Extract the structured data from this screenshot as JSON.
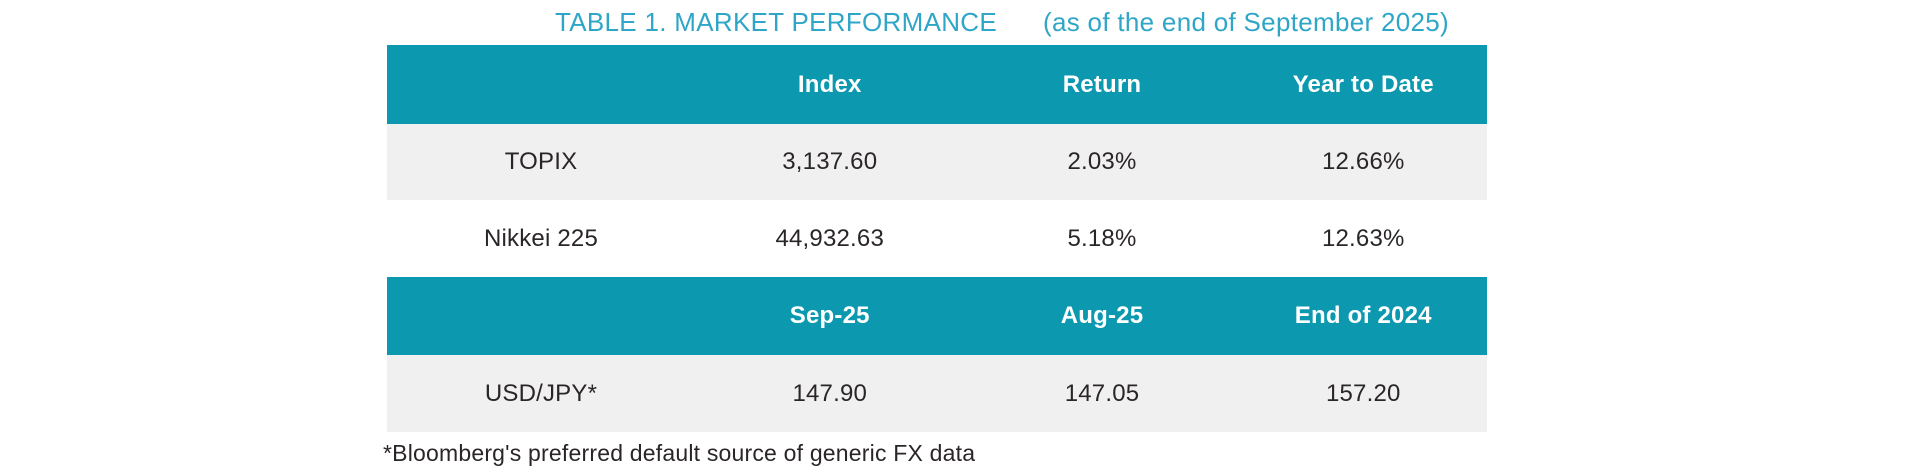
{
  "title": {
    "main": "TABLE 1. MARKET PERFORMANCE",
    "suffix": "(as of the end of September 2025)"
  },
  "colors": {
    "header_bg": "#0c99af",
    "header_text": "#ffffff",
    "title_text": "#2fa6c8",
    "row_alt_bg": "#f0f0f0",
    "body_text": "#2a2627"
  },
  "tables": [
    {
      "headers": [
        "",
        "Index",
        "Return",
        "Year to Date"
      ],
      "rows": [
        [
          "TOPIX",
          "3,137.60",
          "2.03%",
          "12.66%"
        ],
        [
          "Nikkei 225",
          "44,932.63",
          "5.18%",
          "12.63%"
        ]
      ]
    },
    {
      "headers": [
        "",
        "Sep-25",
        "Aug-25",
        "End of 2024"
      ],
      "rows": [
        [
          "USD/JPY*",
          "147.90",
          "147.05",
          "157.20"
        ]
      ]
    }
  ],
  "footnote": "*Bloomberg's preferred default source of generic FX data"
}
